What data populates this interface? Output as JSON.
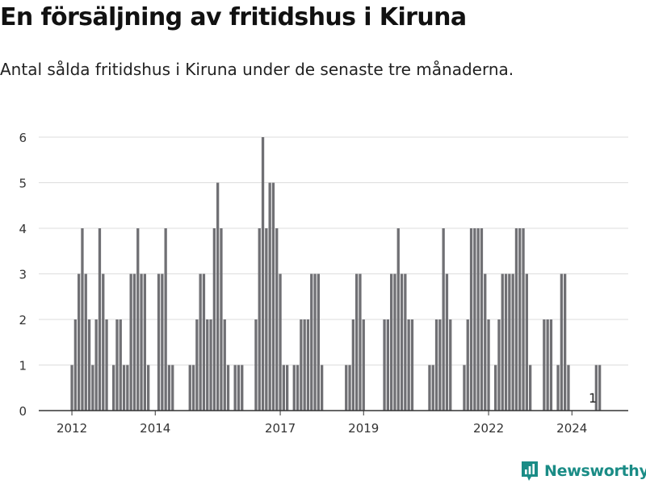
{
  "title": "En försäljning av fritidshus i Kiruna",
  "subtitle": "Antal sålda fritidshus i Kiruna under de senaste tre månaderna.",
  "brand": {
    "name": "Newsworthy",
    "color": "#1a8c86",
    "icon": "newsworthy-logo-icon"
  },
  "colors": {
    "bar": "#707074",
    "highlight": "#139791",
    "grid": "#dddddd",
    "axis": "#333333"
  },
  "chart_data": {
    "type": "bar",
    "xlabel": "",
    "ylabel": "",
    "ylim": [
      0,
      6
    ],
    "yticks": [
      0,
      1,
      2,
      3,
      4,
      5,
      6
    ],
    "xticks": [
      {
        "label": "2012",
        "x": "2012-01"
      },
      {
        "label": "2014",
        "x": "2014-01"
      },
      {
        "label": "2017",
        "x": "2017-01"
      },
      {
        "label": "2019",
        "x": "2019-01"
      },
      {
        "label": "2022",
        "x": "2022-01"
      },
      {
        "label": "2024",
        "x": "2024-01"
      }
    ],
    "start_month": "2012-01",
    "annotation": {
      "text": "1",
      "x": "2024-07"
    },
    "values": [
      1,
      2,
      3,
      4,
      3,
      2,
      1,
      2,
      4,
      3,
      2,
      0,
      1,
      2,
      2,
      1,
      1,
      3,
      3,
      4,
      3,
      3,
      1,
      0,
      0,
      3,
      3,
      4,
      1,
      1,
      0,
      0,
      0,
      0,
      1,
      1,
      2,
      3,
      3,
      2,
      2,
      4,
      5,
      4,
      2,
      1,
      0,
      1,
      1,
      1,
      0,
      0,
      0,
      2,
      4,
      6,
      4,
      5,
      5,
      4,
      3,
      1,
      1,
      0,
      1,
      1,
      2,
      2,
      2,
      3,
      3,
      3,
      1,
      0,
      0,
      0,
      0,
      0,
      0,
      1,
      1,
      2,
      3,
      3,
      2,
      0,
      0,
      0,
      0,
      0,
      2,
      2,
      3,
      3,
      4,
      3,
      3,
      2,
      2,
      0,
      0,
      0,
      0,
      1,
      1,
      2,
      2,
      4,
      3,
      2,
      0,
      0,
      0,
      1,
      2,
      4,
      4,
      4,
      4,
      3,
      2,
      0,
      1,
      2,
      3,
      3,
      3,
      3,
      4,
      4,
      4,
      3,
      1,
      0,
      0,
      0,
      2,
      2,
      2,
      0,
      1,
      3,
      3,
      1,
      0,
      0,
      0,
      0,
      0,
      0,
      0,
      1,
      1
    ]
  }
}
